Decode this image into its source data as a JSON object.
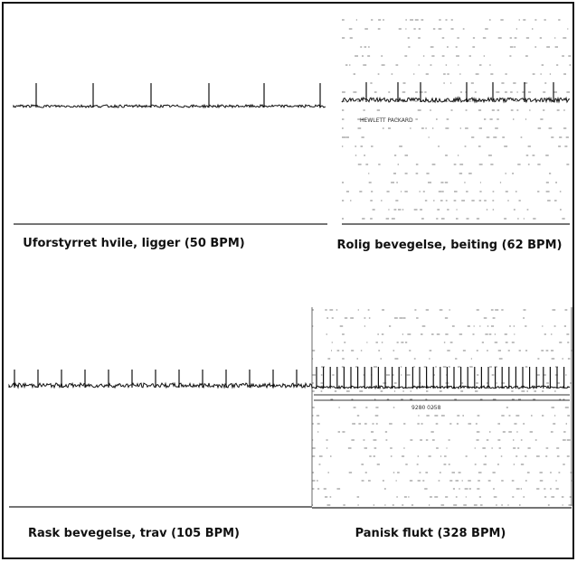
{
  "panels": [
    {
      "caption": "Uforstyrret hvile, ligger (50 BPM)"
    },
    {
      "caption": "Rolig bevegelse, beiting (62 BPM)",
      "printed_text": "HEWLETT PACKARD"
    },
    {
      "caption": "Rask bevegelse, trav (105 BPM)"
    },
    {
      "caption": "Panisk flukt (328 BPM)",
      "printed_text": "9280 0258"
    }
  ]
}
